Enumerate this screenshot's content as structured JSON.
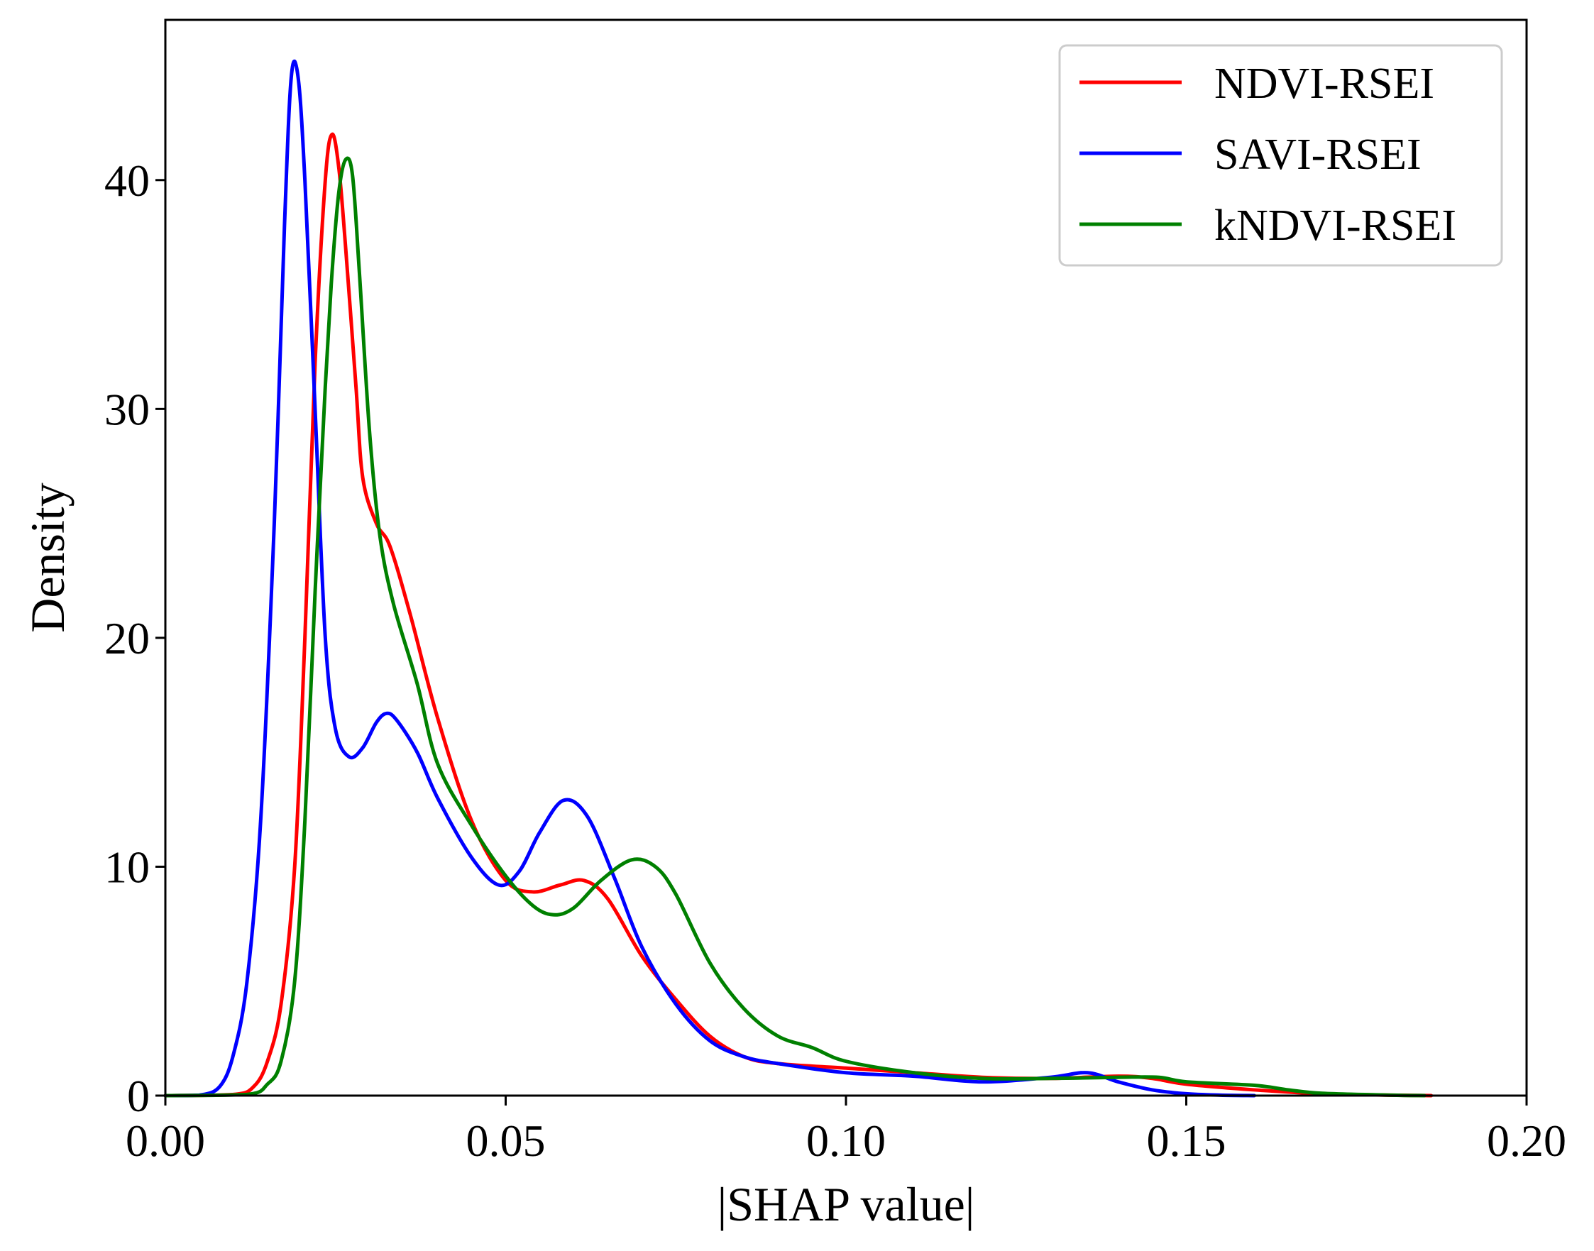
{
  "chart_data": {
    "type": "line",
    "title": "",
    "xlabel": "|SHAP value|",
    "ylabel": "Density",
    "xlim": [
      0.0,
      0.2
    ],
    "ylim": [
      0,
      47
    ],
    "xticks": [
      0.0,
      0.05,
      0.1,
      0.15,
      0.2
    ],
    "xtick_labels": [
      "0.00",
      "0.05",
      "0.10",
      "0.15",
      "0.20"
    ],
    "yticks": [
      0,
      10,
      20,
      30,
      40
    ],
    "ytick_labels": [
      "0",
      "10",
      "20",
      "30",
      "40"
    ],
    "grid": false,
    "legend_position": "top-right",
    "series": [
      {
        "name": "NDVI-RSEI",
        "color": "#ff0000",
        "points": [
          [
            0.0,
            0
          ],
          [
            0.01,
            0.05
          ],
          [
            0.013,
            0.4
          ],
          [
            0.015,
            1.5
          ],
          [
            0.017,
            4
          ],
          [
            0.019,
            10
          ],
          [
            0.0205,
            20
          ],
          [
            0.022,
            32
          ],
          [
            0.0235,
            40
          ],
          [
            0.0245,
            42
          ],
          [
            0.0255,
            40.5
          ],
          [
            0.0265,
            37
          ],
          [
            0.028,
            31
          ],
          [
            0.029,
            27
          ],
          [
            0.031,
            25
          ],
          [
            0.033,
            24
          ],
          [
            0.036,
            21
          ],
          [
            0.04,
            16.5
          ],
          [
            0.045,
            12
          ],
          [
            0.05,
            9.4
          ],
          [
            0.054,
            8.9
          ],
          [
            0.058,
            9.2
          ],
          [
            0.0615,
            9.4
          ],
          [
            0.065,
            8.6
          ],
          [
            0.07,
            6.1
          ],
          [
            0.075,
            4.2
          ],
          [
            0.08,
            2.6
          ],
          [
            0.085,
            1.7
          ],
          [
            0.09,
            1.4
          ],
          [
            0.1,
            1.2
          ],
          [
            0.11,
            1.0
          ],
          [
            0.12,
            0.8
          ],
          [
            0.13,
            0.75
          ],
          [
            0.14,
            0.85
          ],
          [
            0.145,
            0.75
          ],
          [
            0.15,
            0.5
          ],
          [
            0.16,
            0.25
          ],
          [
            0.17,
            0.08
          ],
          [
            0.18,
            0.02
          ],
          [
            0.186,
            0.0
          ]
        ]
      },
      {
        "name": "SAVI-RSEI",
        "color": "#0000ff",
        "points": [
          [
            0.0,
            0
          ],
          [
            0.005,
            0.02
          ],
          [
            0.008,
            0.4
          ],
          [
            0.01,
            1.8
          ],
          [
            0.012,
            5
          ],
          [
            0.014,
            12
          ],
          [
            0.016,
            25
          ],
          [
            0.0175,
            38
          ],
          [
            0.0185,
            44.5
          ],
          [
            0.0195,
            44.5
          ],
          [
            0.0205,
            40
          ],
          [
            0.022,
            30
          ],
          [
            0.0235,
            20
          ],
          [
            0.025,
            16
          ],
          [
            0.027,
            14.8
          ],
          [
            0.029,
            15.2
          ],
          [
            0.031,
            16.3
          ],
          [
            0.0325,
            16.7
          ],
          [
            0.034,
            16.4
          ],
          [
            0.037,
            15
          ],
          [
            0.04,
            13
          ],
          [
            0.045,
            10.4
          ],
          [
            0.049,
            9.2
          ],
          [
            0.052,
            9.8
          ],
          [
            0.055,
            11.5
          ],
          [
            0.0585,
            12.9
          ],
          [
            0.062,
            12.2
          ],
          [
            0.066,
            9.5
          ],
          [
            0.07,
            6.5
          ],
          [
            0.075,
            4
          ],
          [
            0.08,
            2.4
          ],
          [
            0.085,
            1.7
          ],
          [
            0.09,
            1.4
          ],
          [
            0.1,
            1.0
          ],
          [
            0.11,
            0.85
          ],
          [
            0.12,
            0.6
          ],
          [
            0.13,
            0.8
          ],
          [
            0.1355,
            1.0
          ],
          [
            0.14,
            0.6
          ],
          [
            0.145,
            0.25
          ],
          [
            0.15,
            0.08
          ],
          [
            0.155,
            0.02
          ],
          [
            0.16,
            0.0
          ]
        ]
      },
      {
        "name": "kNDVI-RSEI",
        "color": "#008000",
        "points": [
          [
            0.0,
            0
          ],
          [
            0.012,
            0.05
          ],
          [
            0.015,
            0.5
          ],
          [
            0.017,
            1.5
          ],
          [
            0.019,
            5
          ],
          [
            0.0205,
            12
          ],
          [
            0.022,
            22
          ],
          [
            0.0235,
            31
          ],
          [
            0.0245,
            36
          ],
          [
            0.0255,
            39.5
          ],
          [
            0.0265,
            40.9
          ],
          [
            0.0275,
            40.2
          ],
          [
            0.0285,
            36
          ],
          [
            0.03,
            29
          ],
          [
            0.0315,
            24.5
          ],
          [
            0.0335,
            21.5
          ],
          [
            0.037,
            18
          ],
          [
            0.04,
            14.5
          ],
          [
            0.045,
            11.8
          ],
          [
            0.05,
            9.6
          ],
          [
            0.054,
            8.3
          ],
          [
            0.057,
            7.9
          ],
          [
            0.06,
            8.2
          ],
          [
            0.064,
            9.4
          ],
          [
            0.0685,
            10.3
          ],
          [
            0.072,
            10.0
          ],
          [
            0.075,
            8.8
          ],
          [
            0.08,
            5.8
          ],
          [
            0.085,
            3.8
          ],
          [
            0.09,
            2.6
          ],
          [
            0.095,
            2.1
          ],
          [
            0.1,
            1.5
          ],
          [
            0.11,
            1.0
          ],
          [
            0.12,
            0.75
          ],
          [
            0.13,
            0.75
          ],
          [
            0.14,
            0.8
          ],
          [
            0.146,
            0.8
          ],
          [
            0.15,
            0.6
          ],
          [
            0.16,
            0.45
          ],
          [
            0.165,
            0.25
          ],
          [
            0.17,
            0.1
          ],
          [
            0.18,
            0.02
          ],
          [
            0.185,
            0.0
          ]
        ]
      }
    ]
  }
}
